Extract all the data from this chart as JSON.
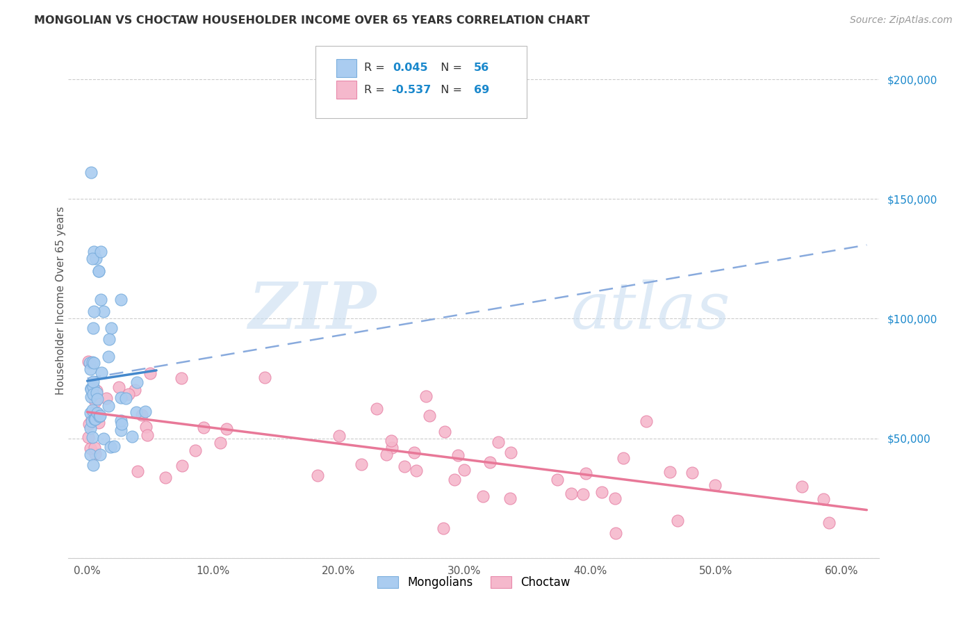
{
  "title": "MONGOLIAN VS CHOCTAW HOUSEHOLDER INCOME OVER 65 YEARS CORRELATION CHART",
  "source": "Source: ZipAtlas.com",
  "ylabel": "Householder Income Over 65 years",
  "xlabel_ticks": [
    "0.0%",
    "10.0%",
    "20.0%",
    "30.0%",
    "40.0%",
    "50.0%",
    "60.0%"
  ],
  "xlabel_vals": [
    0.0,
    10.0,
    20.0,
    30.0,
    40.0,
    50.0,
    60.0
  ],
  "ylim": [
    0,
    215000
  ],
  "xlim": [
    -1.5,
    63
  ],
  "ytick_vals": [
    50000,
    100000,
    150000,
    200000
  ],
  "ytick_labels_right": [
    "$50,000",
    "$100,000",
    "$150,000",
    "$200,000"
  ],
  "mongolian_R": 0.045,
  "mongolian_N": 56,
  "choctaw_R": -0.537,
  "choctaw_N": 69,
  "mongolian_color": "#aaccf0",
  "mongolian_edge": "#7aaedd",
  "choctaw_color": "#f5b8cc",
  "choctaw_edge": "#e888aa",
  "mongolian_line_color": "#4488cc",
  "choctaw_line_color": "#e87898",
  "trend_dash_color": "#88aadd",
  "background_color": "#ffffff",
  "watermark_zip": "ZIP",
  "watermark_atlas": "atlas",
  "legend_text_color": "#1a88cc",
  "axis_color": "#888888",
  "grid_color": "#cccccc"
}
